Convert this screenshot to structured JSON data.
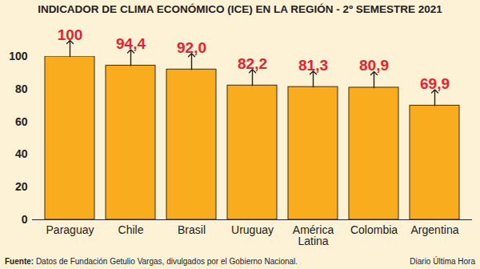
{
  "chart_data": {
    "type": "bar",
    "title": "INDICADOR DE CLIMA ECONÓMICO (ICE) EN LA REGIÓN - 2º SEMESTRE 2021",
    "categories": [
      "Paraguay",
      "Chile",
      "Brasil",
      "Uruguay",
      "América Latina",
      "Colombia",
      "Argentina"
    ],
    "values": [
      100,
      94.4,
      92.0,
      82.2,
      81.3,
      80.9,
      69.9
    ],
    "value_labels": [
      "100",
      "94,4",
      "92,0",
      "82,2",
      "81,3",
      "80,9",
      "69,9"
    ],
    "data_labels": true,
    "color": "#f9ac1e",
    "ylim": [
      0,
      100
    ],
    "yticks": [
      0,
      20,
      40,
      60,
      80,
      100
    ],
    "grid": false,
    "source_label": "Fuente:",
    "source": "Datos de Fundación Getulio Vargas, divulgados por el Gobierno Nacional.",
    "credit": "Diario Última Hora"
  }
}
